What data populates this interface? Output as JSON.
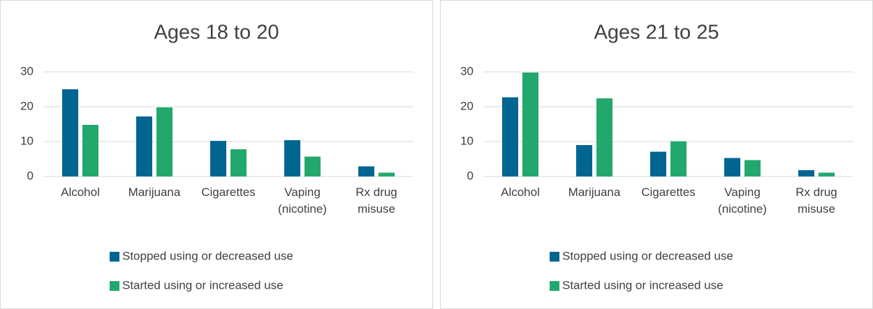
{
  "chart_data": [
    {
      "type": "bar",
      "title": "Ages 18 to 20",
      "categories": [
        "Alcohol",
        "Marijuana",
        "Cigarettes",
        "Vaping (nicotine)",
        "Rx drug misuse"
      ],
      "series": [
        {
          "name": "Stopped using or decreased use",
          "color": "#006591",
          "values": [
            25,
            17.2,
            10.2,
            10.4,
            2.9
          ]
        },
        {
          "name": "Started using or increased use",
          "color": "#22a86c",
          "values": [
            14.8,
            19.8,
            7.8,
            5.7,
            1.1
          ]
        }
      ],
      "ylim": [
        0,
        30
      ],
      "yticks": [
        0,
        10,
        20,
        30
      ],
      "grid": true,
      "legend": "bottom"
    },
    {
      "type": "bar",
      "title": "Ages 21 to 25",
      "categories": [
        "Alcohol",
        "Marijuana",
        "Cigarettes",
        "Vaping (nicotine)",
        "Rx drug misuse"
      ],
      "series": [
        {
          "name": "Stopped using or decreased use",
          "color": "#006591",
          "values": [
            22.7,
            9,
            7.1,
            5.3,
            1.8
          ]
        },
        {
          "name": "Started using or increased use",
          "color": "#22a86c",
          "values": [
            29.8,
            22.4,
            10.1,
            4.7,
            1.1
          ]
        }
      ],
      "ylim": [
        0,
        30
      ],
      "yticks": [
        0,
        10,
        20,
        30
      ],
      "grid": true,
      "legend": "bottom"
    }
  ]
}
